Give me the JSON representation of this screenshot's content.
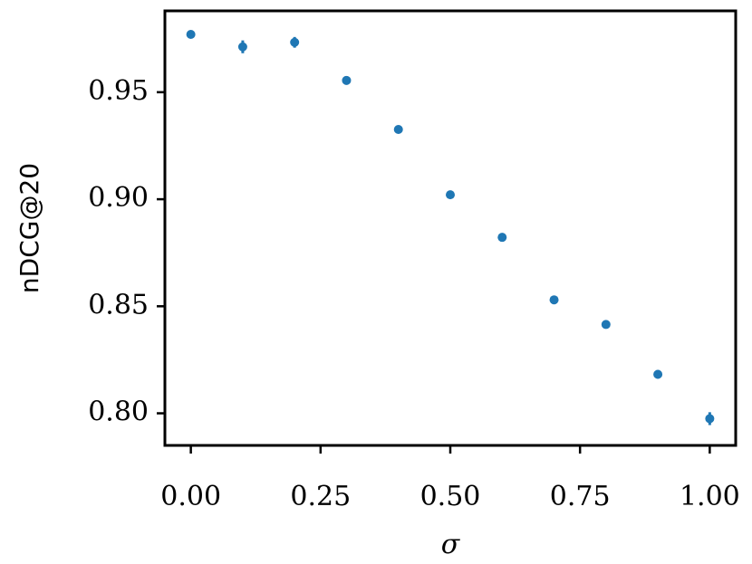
{
  "chart_data": {
    "type": "scatter",
    "x_label": "σ",
    "y_label": "nDCG@20",
    "x": [
      0.0,
      0.1,
      0.2,
      0.3,
      0.4,
      0.5,
      0.6,
      0.7,
      0.8,
      0.9,
      1.0
    ],
    "series": [
      {
        "color": "#1f77b4",
        "values": [
          0.977,
          0.9712,
          0.9733,
          0.9555,
          0.9326,
          0.9021,
          0.8822,
          0.853,
          0.8415,
          0.8182,
          0.7975
        ],
        "errors": [
          0.0005,
          0.003,
          0.0025,
          0.002,
          0.0015,
          0.001,
          0.002,
          0.0015,
          0.0015,
          0.002,
          0.003
        ]
      }
    ],
    "xlim": [
      -0.05,
      1.05
    ],
    "ylim": [
      0.785,
      0.988
    ],
    "xticks": [
      {
        "value": 0,
        "label": "0.00"
      },
      0.25,
      {
        "value": 0.5,
        "label": "0.50"
      },
      0.75,
      {
        "value": 1,
        "label": "1.00"
      }
    ],
    "yticks": [
      {
        "value": 0.8,
        "label": "0.80"
      },
      0.85,
      {
        "value": 0.9,
        "label": "0.90"
      },
      0.95
    ],
    "grid": false
  }
}
